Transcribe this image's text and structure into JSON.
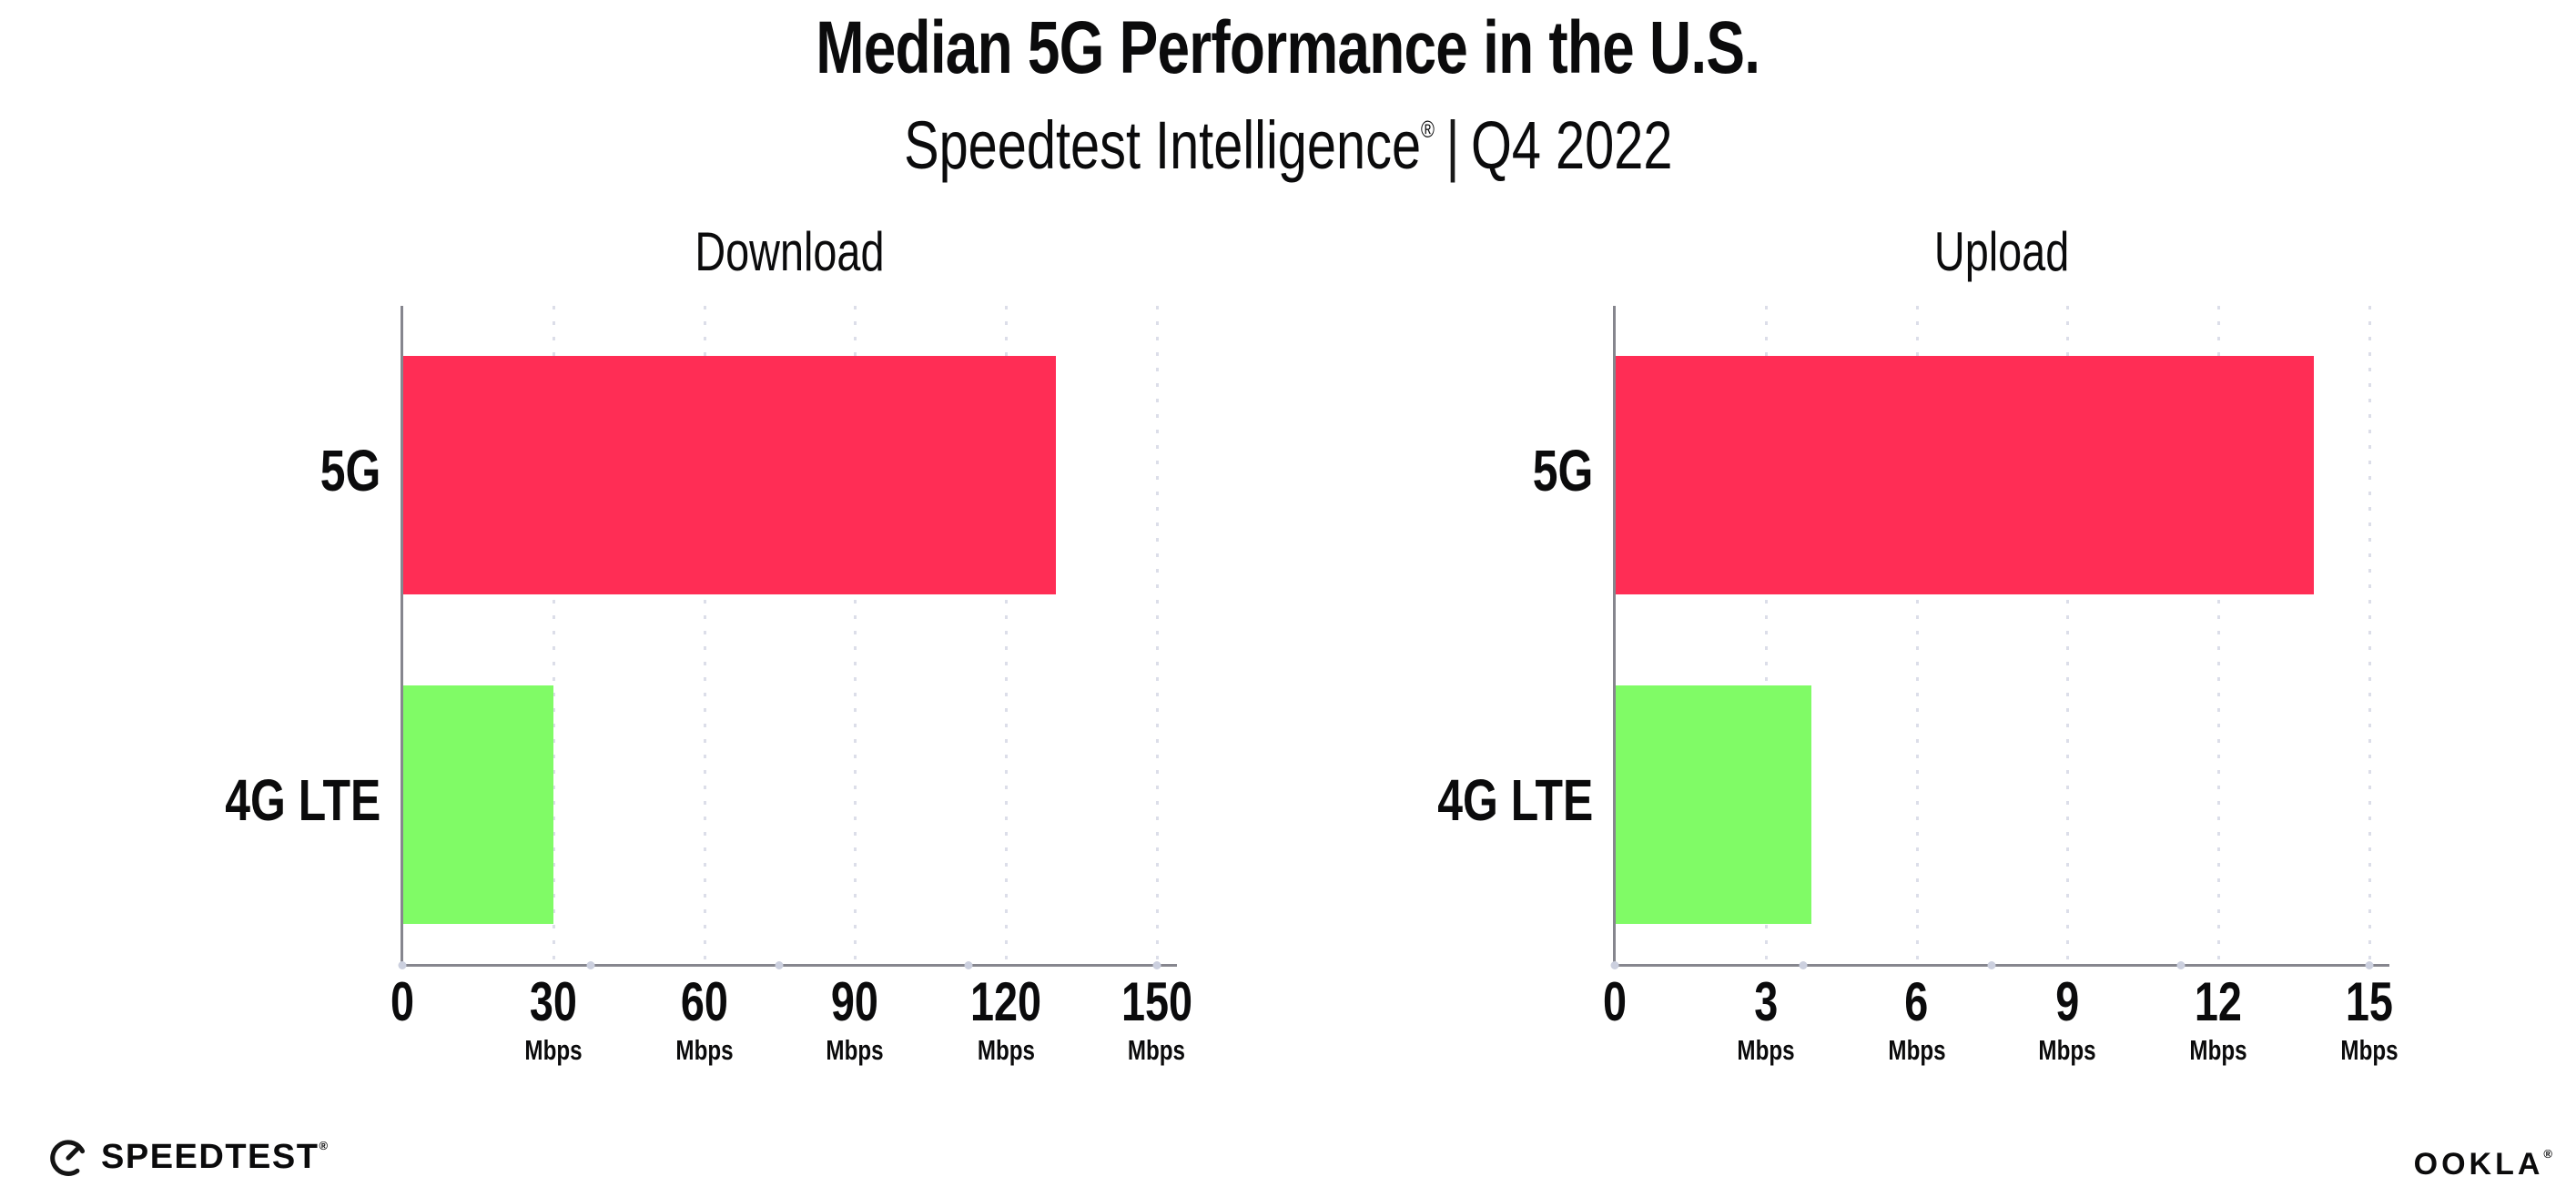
{
  "page": {
    "title": "Median 5G Performance in the U.S.",
    "subtitle": {
      "brand": "Speedtest Intelligence",
      "registered_mark": "®",
      "separator": "|",
      "period": "Q4 2022"
    }
  },
  "footer": {
    "speedtest": {
      "label": "SPEEDTEST",
      "mark": "®",
      "icon": "speedtest-gauge-icon"
    },
    "ookla": {
      "label": "OOKLA",
      "mark": "®"
    }
  },
  "colors": {
    "bar_5g": "#FF2D55",
    "bar_4g_lte": "#80FB66",
    "axis": "#86868E",
    "gridline": "#DCDEE9",
    "axis_dot": "#CCD0DF",
    "text": "#0B0B0C",
    "background": "#FFFFFF"
  },
  "chart_data": [
    {
      "type": "bar",
      "orientation": "horizontal",
      "title": "Download",
      "unit": "Mbps",
      "categories": [
        "5G",
        "4G LTE"
      ],
      "values": [
        130,
        30
      ],
      "bar_colors": [
        "#FF2D55",
        "#80FB66"
      ],
      "xticks": [
        0,
        30,
        60,
        90,
        120,
        150
      ],
      "xtick_unit_labels": [
        "",
        "Mbps",
        "Mbps",
        "Mbps",
        "Mbps",
        "Mbps"
      ],
      "xlim": [
        0,
        154
      ],
      "grid": "dotted-vertical",
      "legend": "none"
    },
    {
      "type": "bar",
      "orientation": "horizontal",
      "title": "Upload",
      "unit": "Mbps",
      "categories": [
        "5G",
        "4G LTE"
      ],
      "values": [
        13.9,
        3.9
      ],
      "bar_colors": [
        "#FF2D55",
        "#80FB66"
      ],
      "xticks": [
        0,
        3,
        6,
        9,
        12,
        15
      ],
      "xtick_unit_labels": [
        "",
        "Mbps",
        "Mbps",
        "Mbps",
        "Mbps",
        "Mbps"
      ],
      "xlim": [
        0,
        15.4
      ],
      "grid": "dotted-vertical",
      "legend": "none"
    }
  ]
}
